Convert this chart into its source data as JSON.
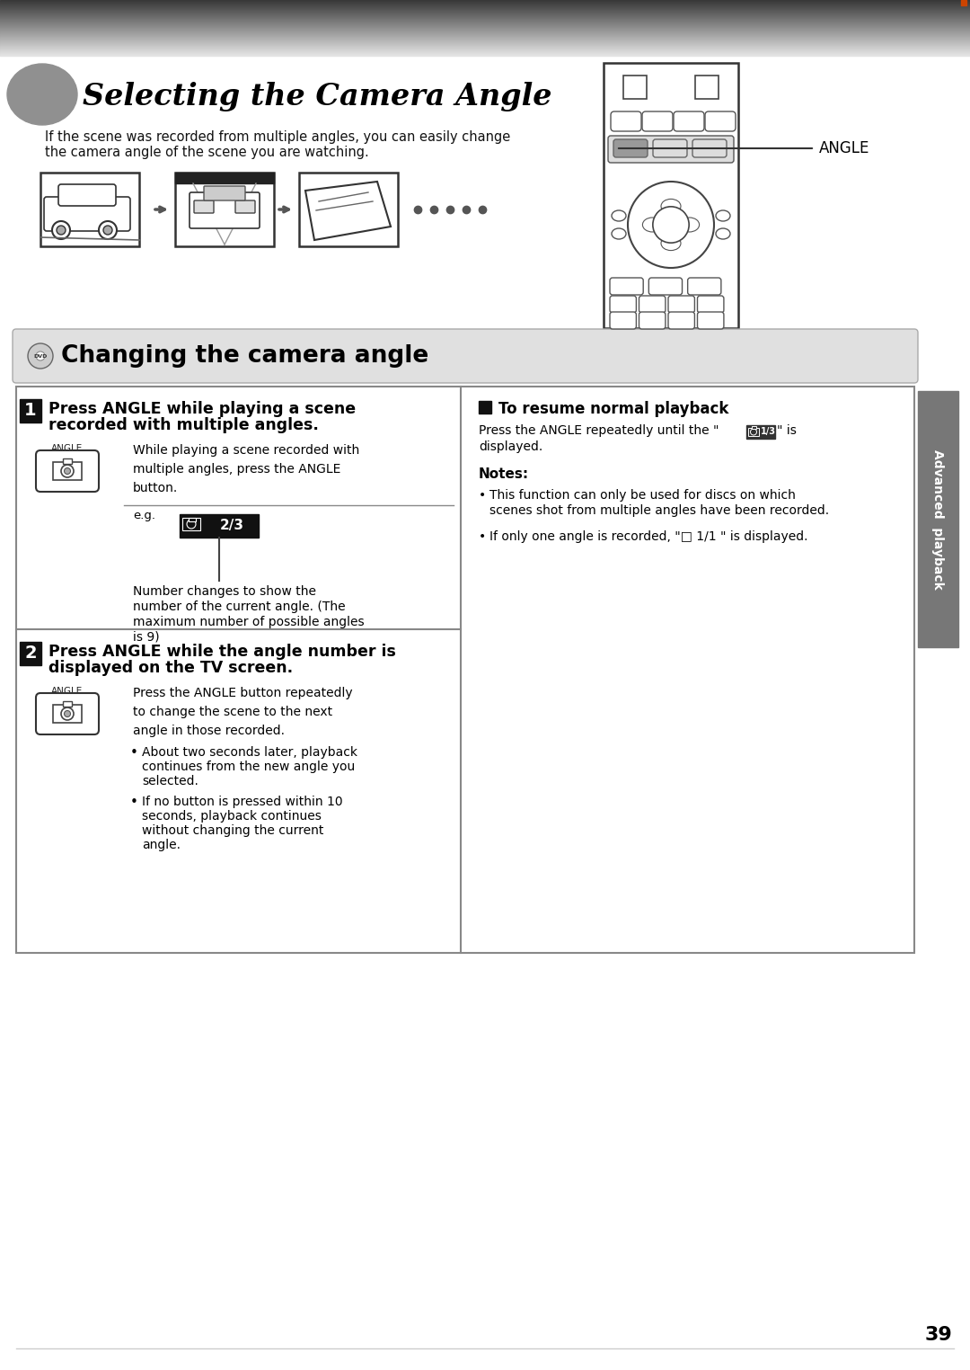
{
  "page_bg": "#ffffff",
  "title_text": "Selecting the Camera Angle",
  "desc_text1": "If the scene was recorded from multiple angles, you can easily change",
  "desc_text2": "the camera angle of the scene you are watching.",
  "section_header_text": "Changing the camera angle",
  "step1_title1": "Press ANGLE while playing a scene",
  "step1_title2": "recorded with multiple angles.",
  "step1_body": "While playing a scene recorded with\nmultiple angles, press the ANGLE\nbutton.",
  "step1_note1": "Number changes to show the",
  "step1_note2": "number of the current angle. (The",
  "step1_note3": "maximum number of possible angles",
  "step1_note4": "is 9)",
  "step2_title1": "Press ANGLE while the angle number is",
  "step2_title2": "displayed on the TV screen.",
  "step2_body": "Press the ANGLE button repeatedly\nto change the scene to the next\nangle in those recorded.",
  "step2_bullet1a": "About two seconds later, playback",
  "step2_bullet1b": "continues from the new angle you",
  "step2_bullet1c": "selected.",
  "step2_bullet2a": "If no button is pressed within 10",
  "step2_bullet2b": "seconds, playback continues",
  "step2_bullet2c": "without changing the current",
  "step2_bullet2d": "angle.",
  "right_title": "To resume normal playback",
  "right_body_pre": "Press the ANGLE repeatedly until the \"",
  "right_body_post": "\" is",
  "right_body2": "displayed.",
  "notes_title": "Notes:",
  "note1a": "This function can only be used for discs on which",
  "note1b": "scenes shot from multiple angles have been recorded.",
  "note2": "If only one angle is recorded, \"□ 1/1 \" is displayed.",
  "sidebar_text": "Advanced  playback",
  "page_number": "39",
  "angle_label": "ANGLE",
  "eg_label": "e.g.",
  "orange_line_color": "#cc5500"
}
